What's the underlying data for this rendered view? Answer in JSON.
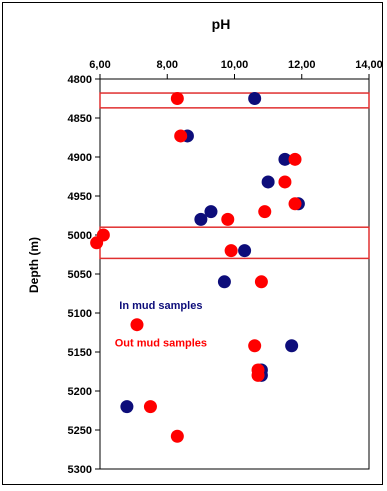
{
  "chart_data": {
    "type": "scatter",
    "title": "pH",
    "xlabel": "",
    "ylabel": "Depth (m)",
    "x_axis_position": "top",
    "y_axis_inverted": true,
    "xlim": [
      6,
      14
    ],
    "ylim": [
      4800,
      5300
    ],
    "x_ticks": [
      "6,00",
      "8,00",
      "10,00",
      "12,00",
      "14,00"
    ],
    "y_ticks": [
      "4800",
      "4850",
      "4900",
      "4950",
      "5000",
      "5050",
      "5100",
      "5150",
      "5200",
      "5250",
      "5300"
    ],
    "grid": false,
    "series": [
      {
        "name": "In mud samples",
        "color": "#0d0d7a",
        "points": [
          {
            "x": 10.6,
            "y": 4825
          },
          {
            "x": 8.6,
            "y": 4873
          },
          {
            "x": 11.5,
            "y": 4903
          },
          {
            "x": 11.0,
            "y": 4932
          },
          {
            "x": 11.9,
            "y": 4960
          },
          {
            "x": 9.3,
            "y": 4970
          },
          {
            "x": 9.0,
            "y": 4980
          },
          {
            "x": 10.3,
            "y": 5020
          },
          {
            "x": 9.7,
            "y": 5060
          },
          {
            "x": 11.7,
            "y": 5142
          },
          {
            "x": 10.8,
            "y": 5173
          },
          {
            "x": 10.8,
            "y": 5180
          },
          {
            "x": 6.8,
            "y": 5220
          }
        ]
      },
      {
        "name": "Out mud samples",
        "color": "#ff0000",
        "points": [
          {
            "x": 8.3,
            "y": 4825
          },
          {
            "x": 8.4,
            "y": 4873
          },
          {
            "x": 11.8,
            "y": 4903
          },
          {
            "x": 11.5,
            "y": 4932
          },
          {
            "x": 11.8,
            "y": 4960
          },
          {
            "x": 10.9,
            "y": 4970
          },
          {
            "x": 9.8,
            "y": 4980
          },
          {
            "x": 6.1,
            "y": 5000
          },
          {
            "x": 5.9,
            "y": 5010
          },
          {
            "x": 9.9,
            "y": 5020
          },
          {
            "x": 10.8,
            "y": 5060
          },
          {
            "x": 7.1,
            "y": 5115
          },
          {
            "x": 10.6,
            "y": 5142
          },
          {
            "x": 10.7,
            "y": 5173
          },
          {
            "x": 10.7,
            "y": 5180
          },
          {
            "x": 7.5,
            "y": 5220
          },
          {
            "x": 8.3,
            "y": 5258
          }
        ]
      }
    ],
    "highlight_bands": [
      {
        "from": 4818,
        "to": 4837,
        "color": "#e03030"
      },
      {
        "from": 4990,
        "to": 5030,
        "color": "#e03030"
      }
    ],
    "annotations": [
      {
        "text": "In mud samples",
        "color": "#0d0d7a",
        "x": 9.0,
        "y": 5090
      },
      {
        "text": "Out mud samples",
        "color": "#ff0000",
        "x": 9.0,
        "y": 5138
      }
    ]
  }
}
